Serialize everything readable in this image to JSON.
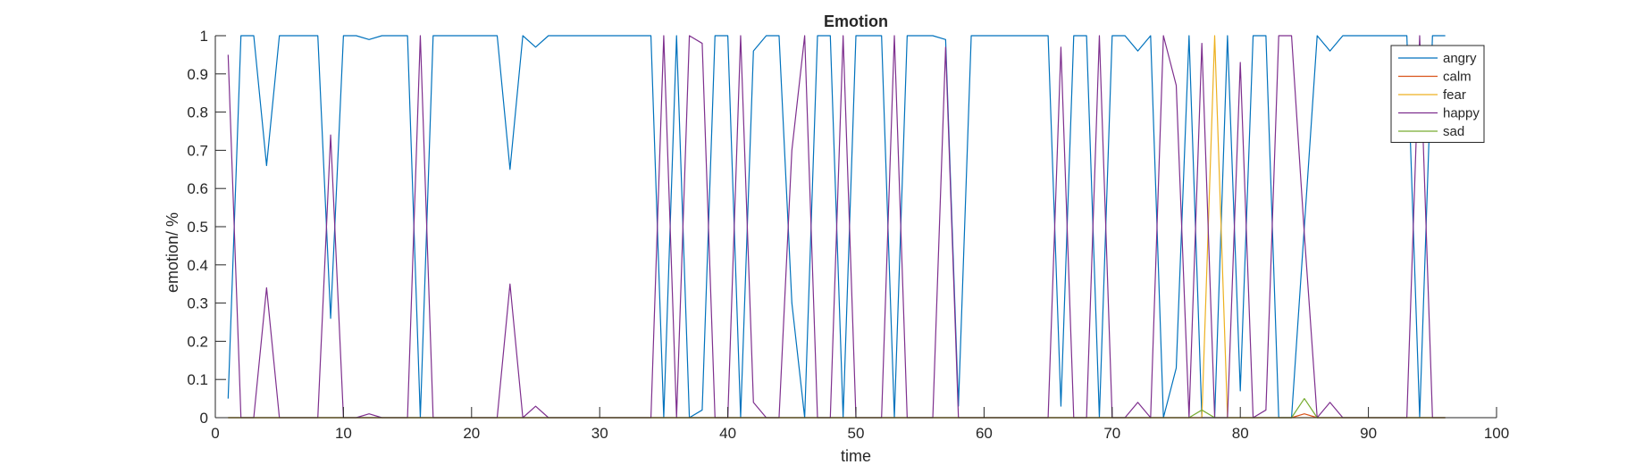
{
  "chart_data": {
    "type": "line",
    "title": "Emotion",
    "xlabel": "time",
    "ylabel": "emotion/ %",
    "xlim": [
      0,
      100
    ],
    "ylim": [
      0,
      1
    ],
    "xticks": [
      "0",
      "10",
      "20",
      "30",
      "40",
      "50",
      "60",
      "70",
      "80",
      "90",
      "100"
    ],
    "yticks": [
      "0",
      "0.1",
      "0.2",
      "0.3",
      "0.4",
      "0.5",
      "0.6",
      "0.7",
      "0.8",
      "0.9",
      "1"
    ],
    "grid": false,
    "legend_position": "top-right",
    "x": [
      1,
      2,
      3,
      4,
      5,
      6,
      7,
      8,
      9,
      10,
      11,
      12,
      13,
      14,
      15,
      16,
      17,
      18,
      19,
      20,
      21,
      22,
      23,
      24,
      25,
      26,
      27,
      28,
      29,
      30,
      31,
      32,
      33,
      34,
      35,
      36,
      37,
      38,
      39,
      40,
      41,
      42,
      43,
      44,
      45,
      46,
      47,
      48,
      49,
      50,
      51,
      52,
      53,
      54,
      55,
      56,
      57,
      58,
      59,
      60,
      61,
      62,
      63,
      64,
      65,
      66,
      67,
      68,
      69,
      70,
      71,
      72,
      73,
      74,
      75,
      76,
      77,
      78,
      79,
      80,
      81,
      82,
      83,
      84,
      85,
      86,
      87,
      88,
      89,
      90,
      91,
      92,
      93,
      94,
      95,
      96
    ],
    "series": [
      {
        "name": "angry",
        "color": "#0072BD",
        "values": [
          0.05,
          1,
          1,
          0.66,
          1,
          1,
          1,
          1,
          0.26,
          1,
          1,
          0.99,
          1,
          1,
          1,
          0,
          1,
          1,
          1,
          1,
          1,
          1,
          0.65,
          1,
          0.97,
          1,
          1,
          1,
          1,
          1,
          1,
          1,
          1,
          1,
          0,
          1,
          0,
          0.02,
          1,
          1,
          0,
          0.96,
          1,
          1,
          0.3,
          0,
          1,
          1,
          0,
          1,
          1,
          1,
          0,
          1,
          1,
          1,
          0.99,
          0.03,
          1,
          1,
          1,
          1,
          1,
          1,
          1,
          0.03,
          1,
          1,
          0,
          1,
          1,
          0.96,
          1,
          0,
          0.13,
          1,
          0,
          0,
          1,
          0.07,
          1,
          1,
          0,
          0,
          0.5,
          1,
          0.96,
          1,
          1,
          1,
          1,
          1,
          1,
          0,
          1,
          1
        ]
      },
      {
        "name": "calm",
        "color": "#D95319",
        "values": [
          0,
          0,
          0,
          0,
          0,
          0,
          0,
          0,
          0,
          0,
          0,
          0,
          0,
          0,
          0,
          0,
          0,
          0,
          0,
          0,
          0,
          0,
          0,
          0,
          0,
          0,
          0,
          0,
          0,
          0,
          0,
          0,
          0,
          0,
          0,
          0,
          0,
          0,
          0,
          0,
          0,
          0,
          0,
          0,
          0,
          0,
          0,
          0,
          0,
          0,
          0,
          0,
          0,
          0,
          0,
          0,
          0,
          0,
          0,
          0,
          0,
          0,
          0,
          0,
          0,
          0,
          0,
          0,
          0,
          0,
          0,
          0,
          0,
          0,
          0,
          0,
          0,
          0,
          0,
          0,
          0,
          0,
          0,
          0,
          0.01,
          0,
          0,
          0,
          0,
          0,
          0,
          0,
          0,
          0,
          0,
          0
        ]
      },
      {
        "name": "fear",
        "color": "#EDB120",
        "values": [
          0,
          0,
          0,
          0,
          0,
          0,
          0,
          0,
          0,
          0,
          0,
          0,
          0,
          0,
          0,
          0,
          0,
          0,
          0,
          0,
          0,
          0,
          0,
          0,
          0,
          0,
          0,
          0,
          0,
          0,
          0,
          0,
          0,
          0,
          0,
          0,
          0,
          0,
          0,
          0,
          0,
          0,
          0,
          0,
          0,
          0,
          0,
          0,
          0,
          0,
          0,
          0,
          0,
          0,
          0,
          0,
          0,
          0,
          0,
          0,
          0,
          0,
          0,
          0,
          0,
          0,
          0,
          0,
          0,
          0,
          0,
          0,
          0,
          0,
          0,
          0,
          0,
          1,
          0,
          0,
          0,
          0,
          0,
          0,
          0,
          0,
          0,
          0,
          0,
          0,
          0,
          0,
          0,
          0,
          0,
          0
        ]
      },
      {
        "name": "happy",
        "color": "#7E2F8E",
        "values": [
          0.95,
          0,
          0,
          0.34,
          0,
          0,
          0,
          0,
          0.74,
          0,
          0,
          0.01,
          0,
          0,
          0,
          1,
          0,
          0,
          0,
          0,
          0,
          0,
          0.35,
          0,
          0.03,
          0,
          0,
          0,
          0,
          0,
          0,
          0,
          0,
          0,
          1,
          0,
          1,
          0.98,
          0,
          0,
          1,
          0.04,
          0,
          0,
          0.7,
          1,
          0,
          0,
          1,
          0,
          0,
          0,
          1,
          0,
          0,
          0,
          0.97,
          0,
          0,
          0,
          0,
          0,
          0,
          0,
          0,
          0.97,
          0,
          0,
          1,
          0,
          0,
          0.04,
          0,
          1,
          0.87,
          0,
          0.98,
          0,
          0,
          0.93,
          0,
          0.02,
          1,
          1,
          0.48,
          0,
          0.04,
          0,
          0,
          0,
          0,
          0,
          0,
          1,
          0,
          0
        ]
      },
      {
        "name": "sad",
        "color": "#77AC30",
        "values": [
          0,
          0,
          0,
          0,
          0,
          0,
          0,
          0,
          0,
          0,
          0,
          0,
          0,
          0,
          0,
          0,
          0,
          0,
          0,
          0,
          0,
          0,
          0,
          0,
          0,
          0,
          0,
          0,
          0,
          0,
          0,
          0,
          0,
          0,
          0,
          0,
          0,
          0,
          0,
          0,
          0,
          0,
          0,
          0,
          0,
          0,
          0,
          0,
          0,
          0,
          0,
          0,
          0,
          0,
          0,
          0,
          0,
          0,
          0,
          0,
          0,
          0,
          0,
          0,
          0,
          0,
          0,
          0,
          0,
          0,
          0,
          0,
          0,
          0,
          0,
          0,
          0.02,
          0,
          0,
          0,
          0,
          0,
          0,
          0,
          0.05,
          0,
          0,
          0,
          0,
          0,
          0,
          0,
          0,
          0,
          0,
          0
        ]
      }
    ]
  }
}
